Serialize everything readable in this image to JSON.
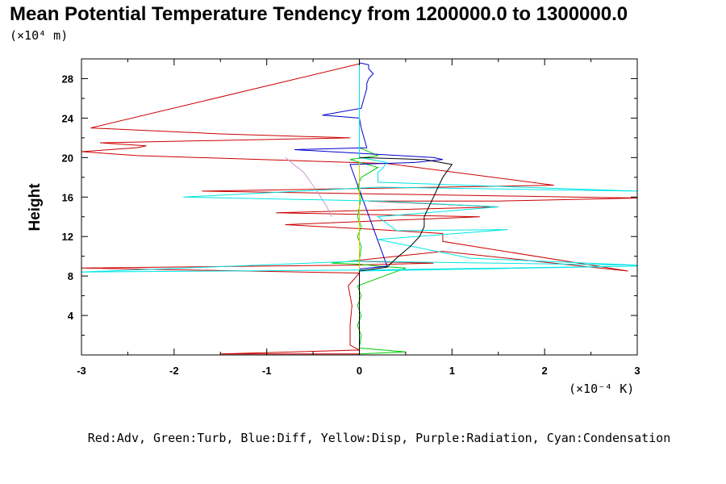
{
  "chart_data": {
    "type": "line",
    "title": "Mean Potential Temperature Tendency from 1200000.0 to 1300000.0",
    "y_unit_label": "(×10⁴ m)",
    "x_unit_label": "(×10⁻⁴ K)",
    "ylabel": "Height",
    "xlabel": "",
    "xlim": [
      -3,
      3
    ],
    "ylim": [
      0,
      30
    ],
    "x_ticks": [
      -3,
      -2,
      -1,
      0,
      1,
      2,
      3
    ],
    "y_ticks": [
      4,
      8,
      12,
      16,
      20,
      24,
      28
    ],
    "legend_note": "Red:Adv, Green:Turb, Blue:Diff, Yellow:Disp, Purple:Radiation, Cyan:Condensation",
    "colors": {
      "adv": "#cc0000",
      "turb": "#00cc00",
      "diff": "#0000cc",
      "disp": "#cccc00",
      "radiation": "#cc99cc",
      "condensation": "#00e5e5",
      "total": "#000000"
    },
    "series": [
      {
        "key": "adv",
        "x": [
          0,
          -1.5,
          0,
          -0.1,
          -0.1,
          -0.08,
          -0.12,
          0,
          -3,
          -0.1,
          0.8,
          -0.1,
          0.9,
          2.9,
          0.9,
          0.9,
          0.2,
          -0.8,
          1.3,
          -0.9,
          1.5,
          0.1,
          1.5,
          3,
          0.3,
          -1.7,
          2.1,
          0.3,
          -2.4,
          -3,
          -2.4,
          -2.3,
          -2.8,
          -0.1,
          -1.5,
          -2.9,
          0
        ],
        "y": [
          0.1,
          0.1,
          0.5,
          1,
          3,
          5,
          7,
          8.3,
          8.8,
          9.1,
          9.3,
          9.5,
          10.5,
          8.5,
          11.5,
          12.3,
          12.7,
          13.2,
          14,
          14.4,
          15,
          15.6,
          15.6,
          15.9,
          16.3,
          16.6,
          17.2,
          19.4,
          20.2,
          20.6,
          21,
          21.2,
          21.5,
          22,
          22.4,
          23,
          29.5
        ]
      },
      {
        "key": "turb",
        "x": [
          0,
          0.5,
          0,
          0.02,
          -0.02,
          0.02,
          -0.02,
          0.02,
          -0.02,
          0.5,
          0.2,
          0,
          -0.3,
          0,
          0.02,
          -0.02,
          0.02,
          -0.02,
          0,
          0.02,
          -0.02,
          0.02,
          0.2,
          -0.1,
          0.2,
          0
        ],
        "y": [
          0.1,
          0.3,
          0.7,
          2,
          3,
          4,
          5,
          6,
          7,
          8.8,
          9,
          9.2,
          9.3,
          9.6,
          11,
          12,
          13,
          14,
          15,
          16,
          17,
          18,
          19,
          19.8,
          20.2,
          21
        ]
      },
      {
        "key": "diff",
        "x": [
          0,
          0,
          0.3,
          -0.1,
          0.6,
          0.9,
          0.8,
          -0.7,
          0.08,
          0.05,
          0.02,
          0,
          -0.4,
          0.02,
          0.05,
          0.08,
          0.08,
          0.1,
          0.15,
          0.1,
          0.1,
          0
        ],
        "y": [
          0.1,
          8.7,
          9,
          19.3,
          19.5,
          19.8,
          20,
          20.8,
          21,
          22,
          23,
          24,
          24.3,
          25,
          26,
          27,
          27.5,
          28,
          28.5,
          29,
          29.4,
          29.6
        ]
      },
      {
        "key": "disp",
        "x": [
          0,
          0,
          0,
          0
        ],
        "y": [
          0.1,
          9,
          15,
          19.5
        ]
      },
      {
        "key": "radiation",
        "x": [
          -0.3,
          -0.35,
          -0.45,
          -0.6,
          -0.8
        ],
        "y": [
          14,
          15,
          16.5,
          18.5,
          20
        ]
      },
      {
        "key": "condensation",
        "x": [
          0,
          0,
          3,
          0,
          -3,
          0,
          3,
          1.2,
          0.2,
          1.6,
          0.4,
          0.2,
          1.5,
          0.2,
          -1.9,
          0.2,
          3,
          0.2,
          0.2,
          0.25,
          0.3,
          0,
          0
        ],
        "y": [
          0.1,
          8.5,
          9,
          8.6,
          8.4,
          9.5,
          9.1,
          9.8,
          11.7,
          12.7,
          12.6,
          14,
          15,
          15.6,
          16,
          17,
          16.6,
          17.5,
          18.5,
          18.9,
          19.5,
          20,
          29.5
        ]
      },
      {
        "key": "total",
        "x": [
          0,
          0,
          0.3,
          0.4,
          0.55,
          0.65,
          0.7,
          0.7,
          0.75,
          0.8,
          0.85,
          0.9,
          1,
          0.7,
          0
        ],
        "y": [
          0.1,
          8.5,
          8.9,
          9.8,
          11,
          12,
          13,
          14,
          15,
          16,
          17,
          18,
          19.3,
          19.8,
          20
        ]
      }
    ]
  }
}
